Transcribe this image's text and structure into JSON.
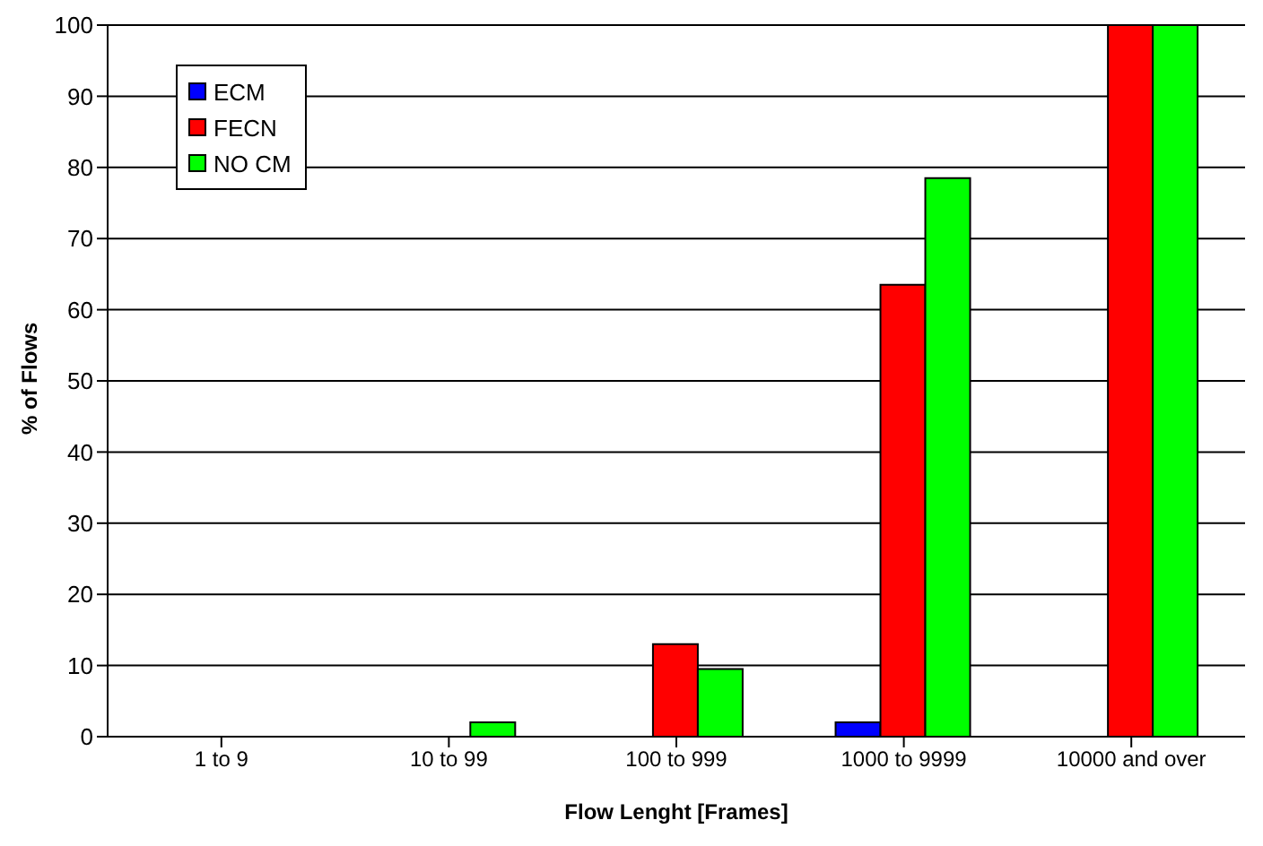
{
  "chart_data": {
    "type": "bar",
    "xlabel": "Flow Lenght [Frames]",
    "ylabel": "% of Flows",
    "categories": [
      "1 to 9",
      "10 to 99",
      "100 to 999",
      "1000 to 9999",
      "10000 and over"
    ],
    "series": [
      {
        "name": "ECM",
        "color": "#0000ff",
        "values": [
          0,
          0,
          0,
          2,
          0
        ]
      },
      {
        "name": "FECN",
        "color": "#ff0000",
        "values": [
          0,
          0,
          13,
          63.5,
          100
        ]
      },
      {
        "name": "NO CM",
        "color": "#00ff00",
        "values": [
          0,
          2,
          9.5,
          78.5,
          100
        ]
      }
    ],
    "ylim": [
      0,
      100
    ],
    "yticks": [
      0,
      10,
      20,
      30,
      40,
      50,
      60,
      70,
      80,
      90,
      100
    ],
    "grid": "y",
    "legend": "top left"
  }
}
